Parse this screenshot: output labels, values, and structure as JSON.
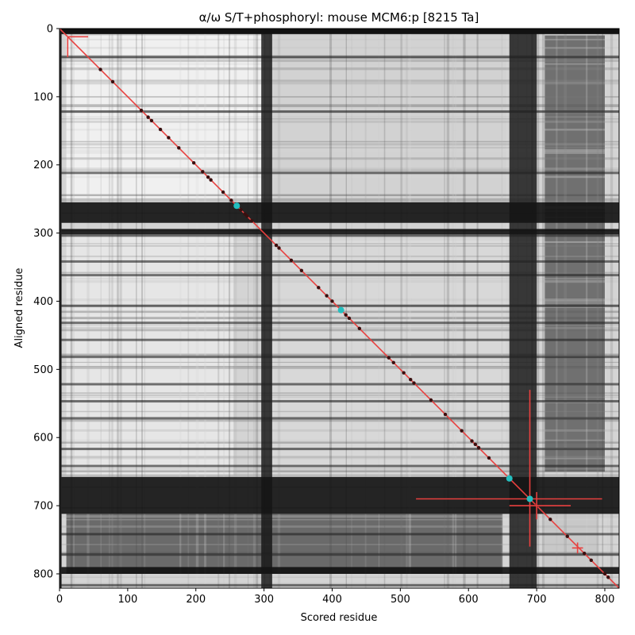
{
  "chart_data": {
    "type": "heatmap",
    "title": "α/ω S/T+phosphoryl: mouse MCM6:p [8215 Ta]",
    "xlabel": "Scored residue",
    "ylabel": "Aligned residue",
    "xlim": [
      0,
      821
    ],
    "ylim": [
      821,
      0
    ],
    "xticks": [
      0,
      100,
      200,
      300,
      400,
      500,
      600,
      700,
      800
    ],
    "yticks": [
      0,
      100,
      200,
      300,
      400,
      500,
      600,
      700,
      800
    ],
    "colormap": "grayscale",
    "dark_row_bands": [
      [
        255,
        285
      ],
      [
        294,
        302
      ],
      [
        658,
        712
      ],
      [
        790,
        800
      ]
    ],
    "dark_col_bands": [
      [
        660,
        700
      ],
      [
        296,
        312
      ]
    ],
    "diagonal": {
      "from": [
        0,
        0
      ],
      "to": [
        821,
        821
      ],
      "color": "#e8403f"
    },
    "dark_points": [
      [
        60,
        60
      ],
      [
        78,
        78
      ],
      [
        120,
        120
      ],
      [
        130,
        130
      ],
      [
        135,
        135
      ],
      [
        148,
        148
      ],
      [
        160,
        160
      ],
      [
        175,
        175
      ],
      [
        197,
        197
      ],
      [
        210,
        210
      ],
      [
        218,
        218
      ],
      [
        222,
        222
      ],
      [
        240,
        240
      ],
      [
        252,
        252
      ],
      [
        266,
        266
      ],
      [
        272,
        272
      ],
      [
        275,
        275
      ],
      [
        282,
        282
      ],
      [
        318,
        318
      ],
      [
        322,
        322
      ],
      [
        340,
        340
      ],
      [
        355,
        355
      ],
      [
        380,
        380
      ],
      [
        392,
        392
      ],
      [
        400,
        400
      ],
      [
        420,
        420
      ],
      [
        425,
        425
      ],
      [
        440,
        440
      ],
      [
        483,
        483
      ],
      [
        490,
        490
      ],
      [
        505,
        505
      ],
      [
        515,
        515
      ],
      [
        520,
        520
      ],
      [
        545,
        545
      ],
      [
        566,
        566
      ],
      [
        590,
        590
      ],
      [
        605,
        605
      ],
      [
        610,
        610
      ],
      [
        615,
        615
      ],
      [
        630,
        630
      ],
      [
        660,
        660
      ],
      [
        700,
        700
      ],
      [
        720,
        720
      ],
      [
        745,
        745
      ],
      [
        770,
        770
      ],
      [
        780,
        780
      ],
      [
        800,
        800
      ],
      [
        805,
        805
      ]
    ],
    "cyan_points": [
      [
        260,
        260
      ],
      [
        413,
        413
      ],
      [
        660,
        660
      ],
      [
        690,
        690
      ]
    ],
    "cyan_color": "#24bfbf",
    "crosses": [
      {
        "x": 12,
        "y": 12,
        "x_err": [
          0,
          30
        ],
        "y_err": [
          0,
          30
        ]
      },
      {
        "x": 690,
        "y": 690,
        "x_err": [
          167,
          106
        ],
        "y_err": [
          160,
          70
        ]
      },
      {
        "x": 700,
        "y": 700,
        "x_err": [
          40,
          50
        ],
        "y_err": [
          20,
          20
        ]
      },
      {
        "x": 760,
        "y": 762,
        "x_err": [
          8,
          8
        ],
        "y_err": [
          8,
          8
        ]
      }
    ],
    "cross_color": "#e8403f"
  }
}
